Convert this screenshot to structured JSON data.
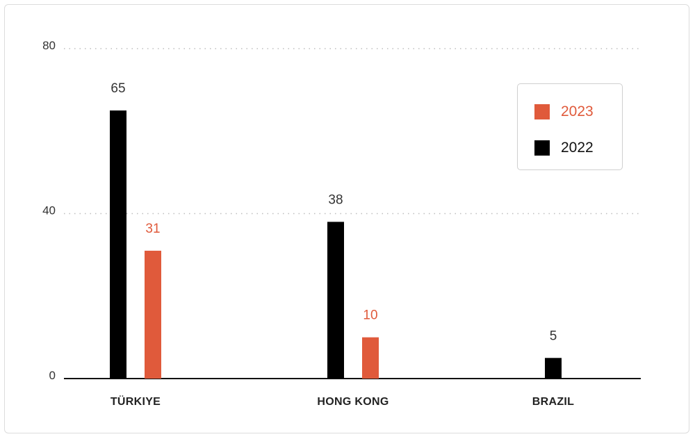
{
  "chart_data": {
    "type": "bar",
    "categories": [
      "TÜRKIYE",
      "HONG KONG",
      "BRAZIL"
    ],
    "series": [
      {
        "name": "2022",
        "color": "#000000",
        "values": [
          65,
          38,
          5
        ]
      },
      {
        "name": "2023",
        "color": "#e05a3b",
        "values": [
          31,
          10,
          null
        ]
      }
    ],
    "data_labels": {
      "2022": [
        "65",
        "38",
        "5"
      ],
      "2023": [
        "31",
        "10",
        ""
      ]
    },
    "yticks": [
      0,
      40,
      80
    ],
    "ylim": [
      0,
      80
    ],
    "grid": "dotted horizontal",
    "legend": {
      "placement": "top-right",
      "entries": [
        {
          "label": "2023",
          "color": "#e05a3b"
        },
        {
          "label": "2022",
          "color": "#000000"
        }
      ]
    },
    "title": "",
    "xlabel": "",
    "ylabel": ""
  }
}
